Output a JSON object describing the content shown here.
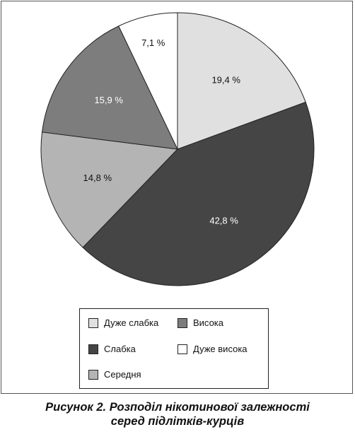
{
  "chart_data": {
    "type": "pie",
    "slices": [
      {
        "label": "Дуже слабка",
        "value": 19.4,
        "value_label": "19,4 %",
        "color": "#e0e0e0",
        "text_color": "#111111"
      },
      {
        "label": "Слабка",
        "value": 42.8,
        "value_label": "42,8 %",
        "color": "#454545",
        "text_color": "#ffffff"
      },
      {
        "label": "Середня",
        "value": 14.8,
        "value_label": "14,8 %",
        "color": "#b4b4b4",
        "text_color": "#111111"
      },
      {
        "label": "Висока",
        "value": 15.9,
        "value_label": "15,9 %",
        "color": "#7d7d7d",
        "text_color": "#ffffff"
      },
      {
        "label": "Дуже висока",
        "value": 7.1,
        "value_label": "7,1 %",
        "color": "#ffffff",
        "text_color": "#111111"
      }
    ],
    "start_angle": "12 o'clock",
    "direction": "clockwise",
    "legend_position": "bottom"
  },
  "caption": {
    "line1": "Рисунок 2. Розподіл нікотинової залежності",
    "line2": "серед підлітків-курців"
  }
}
